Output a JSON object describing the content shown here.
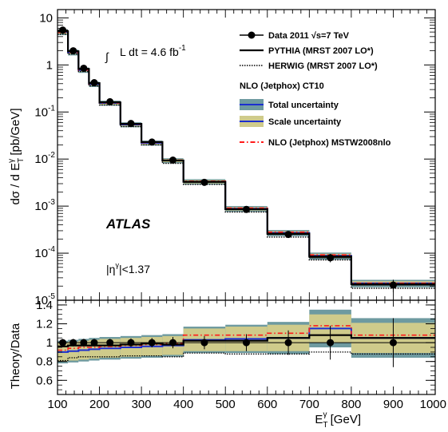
{
  "chart_data": [
    {
      "type": "line",
      "name": "main-panel",
      "ylabel": "dσ / d E",
      "ylabel_sub": "T",
      "ylabel_sup": "γ",
      "ylabel_unit": " [pb/GeV]",
      "yscale": "log",
      "ylim": [
        1e-05,
        15
      ],
      "xlim": [
        100,
        1000
      ],
      "y_ticks": [
        {
          "v": 1e-05,
          "base": "10",
          "exp": "-5"
        },
        {
          "v": 0.0001,
          "base": "10",
          "exp": "-4"
        },
        {
          "v": 0.001,
          "base": "10",
          "exp": "-3"
        },
        {
          "v": 0.01,
          "base": "10",
          "exp": "-2"
        },
        {
          "v": 0.1,
          "base": "10",
          "exp": "-1"
        },
        {
          "v": 1,
          "base": "1",
          "exp": ""
        },
        {
          "v": 10,
          "base": "10",
          "exp": ""
        }
      ],
      "bin_edges": [
        100,
        125,
        150,
        175,
        200,
        250,
        300,
        350,
        400,
        500,
        600,
        700,
        800,
        1000
      ],
      "data": {
        "x": [
          112.5,
          137.5,
          162.5,
          187.5,
          225,
          275,
          325,
          375,
          450,
          550,
          650,
          750,
          900
        ],
        "y": [
          5.5,
          2.0,
          0.85,
          0.42,
          0.165,
          0.057,
          0.023,
          0.0095,
          0.0032,
          0.00085,
          0.00025,
          8e-05,
          2.1e-05
        ],
        "yerr_rel": [
          0.05,
          0.05,
          0.05,
          0.05,
          0.05,
          0.05,
          0.06,
          0.07,
          0.08,
          0.1,
          0.15,
          0.2,
          0.3
        ]
      },
      "pythia": [
        5.2,
        1.95,
        0.82,
        0.41,
        0.16,
        0.056,
        0.023,
        0.0093,
        0.0033,
        0.00086,
        0.00026,
        8.5e-05,
        2.2e-05
      ],
      "herwig": [
        4.5,
        1.7,
        0.72,
        0.36,
        0.14,
        0.049,
        0.02,
        0.0081,
        0.0029,
        0.00075,
        0.00022,
        7.2e-05,
        1.8e-05
      ],
      "nlo_ct10": [
        5.0,
        1.85,
        0.78,
        0.39,
        0.155,
        0.054,
        0.022,
        0.0093,
        0.0033,
        0.00088,
        0.00027,
        8.8e-05,
        2.3e-05
      ],
      "total_unc_rel": [
        0.14,
        0.14,
        0.13,
        0.13,
        0.12,
        0.12,
        0.12,
        0.12,
        0.13,
        0.14,
        0.15,
        0.17,
        0.18
      ],
      "nlo_mstw": [
        4.9,
        1.83,
        0.78,
        0.39,
        0.156,
        0.055,
        0.0225,
        0.0095,
        0.0034,
        0.00091,
        0.00028,
        9.2e-05,
        2.3e-05
      ]
    },
    {
      "type": "line",
      "name": "ratio-panel",
      "ylabel": "Theory/Data",
      "xlabel": "E",
      "xlabel_sub": "T",
      "xlabel_sup": "γ",
      "xlabel_unit": " [GeV]",
      "xlim": [
        100,
        1000
      ],
      "ylim": [
        0.45,
        1.45
      ],
      "y_ticks": [
        "0.6",
        "0.8",
        "1",
        "1.2",
        "1.4"
      ],
      "x_ticks": [
        "100",
        "200",
        "300",
        "400",
        "500",
        "600",
        "700",
        "800",
        "900",
        "1000"
      ],
      "bin_edges": [
        100,
        125,
        150,
        175,
        200,
        250,
        300,
        350,
        400,
        500,
        600,
        700,
        800,
        1000
      ],
      "data_x": [
        112.5,
        137.5,
        162.5,
        187.5,
        225,
        275,
        325,
        375,
        450,
        550,
        650,
        750,
        900
      ],
      "data_err": [
        0.04,
        0.04,
        0.04,
        0.04,
        0.04,
        0.045,
        0.05,
        0.06,
        0.07,
        0.09,
        0.13,
        0.18,
        0.26
      ],
      "pythia": [
        0.96,
        0.97,
        0.97,
        0.97,
        0.97,
        0.98,
        0.99,
        0.98,
        1.02,
        1.02,
        1.05,
        1.08,
        1.05
      ],
      "herwig": [
        0.81,
        0.84,
        0.85,
        0.85,
        0.85,
        0.86,
        0.86,
        0.85,
        0.89,
        0.88,
        0.88,
        0.9,
        0.88
      ],
      "nlo_ct10": [
        0.9,
        0.91,
        0.92,
        0.93,
        0.94,
        0.95,
        0.96,
        0.97,
        1.03,
        1.04,
        1.05,
        1.15,
        1.05
      ],
      "total_unc": [
        0.12,
        0.12,
        0.12,
        0.12,
        0.12,
        0.12,
        0.12,
        0.12,
        0.14,
        0.15,
        0.17,
        0.2,
        0.21
      ],
      "scale_unc": [
        0.1,
        0.1,
        0.1,
        0.1,
        0.1,
        0.1,
        0.1,
        0.1,
        0.12,
        0.13,
        0.14,
        0.15,
        0.16
      ],
      "nlo_mstw": [
        0.92,
        0.94,
        0.95,
        0.95,
        0.96,
        0.97,
        0.98,
        0.99,
        1.08,
        1.08,
        1.1,
        1.18,
        1.08
      ]
    }
  ],
  "legend": {
    "data": "Data 2011",
    "data_sqrt": "√s=7 TeV",
    "pythia": "PYTHIA (MRST 2007 LO*)",
    "herwig": "HERWIG (MRST 2007 LO*)",
    "nlo_header": "NLO (Jetphox) CT10",
    "total_unc": "Total uncertainty",
    "scale_unc": "Scale uncertainty",
    "nlo_mstw": "NLO (Jetphox) MSTW2008nlo"
  },
  "annotations": {
    "lumi_integral": "∫",
    "lumi_text": "L dt =  4.6 fb",
    "lumi_sup": "-1",
    "atlas": "ATLAS",
    "eta_cut": "|η",
    "eta_sup": "γ",
    "eta_rest": "|<1.37"
  },
  "colors": {
    "total_unc": "#6e9aa0",
    "scale_unc": "#cfcb8b",
    "nlo_line": "#1c2fd0",
    "mstw": "#ff1a1a",
    "data": "#000000"
  }
}
